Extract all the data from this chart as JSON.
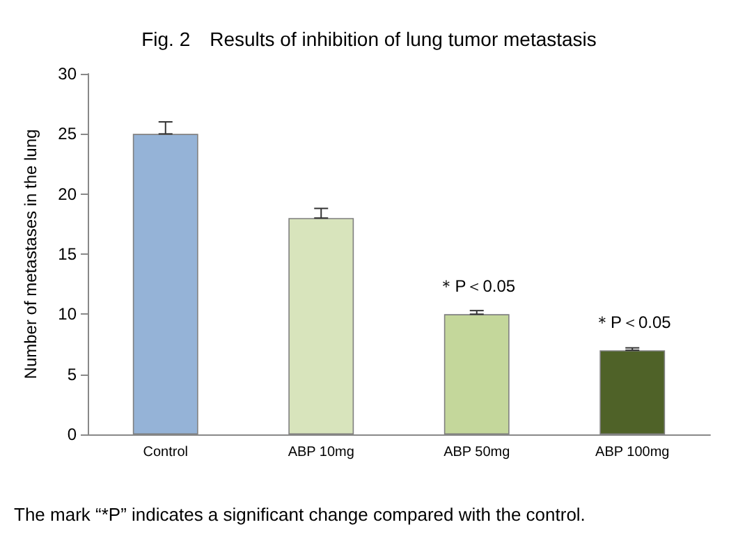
{
  "chart_data": {
    "type": "bar",
    "title": "Fig. 2　Results of inhibition of lung tumor metastasis",
    "ylabel": "Number of metastases in the lung",
    "categories": [
      "Control",
      "ABP 10mg",
      "ABP 50mg",
      "ABP 100mg"
    ],
    "values": [
      25,
      18,
      10,
      7
    ],
    "colors": [
      "#95b3d7",
      "#d8e4bc",
      "#c4d79b",
      "#4f6228"
    ],
    "errors": [
      [
        25,
        26
      ],
      [
        18,
        18.8
      ],
      [
        10,
        10.3
      ],
      [
        7,
        7.2
      ]
    ],
    "ylim": [
      0,
      30
    ],
    "yticks": [
      0,
      5,
      10,
      15,
      20,
      25,
      30
    ],
    "grid": false,
    "annotations": [
      {
        "text": "＊P＜0.05",
        "x": "ABP 50mg",
        "y": 10
      },
      {
        "text": "＊P＜0.05",
        "x": "ABP 100mg",
        "y": 7
      },
      "The mark “*P” indicates a significant change compared with the control."
    ]
  }
}
